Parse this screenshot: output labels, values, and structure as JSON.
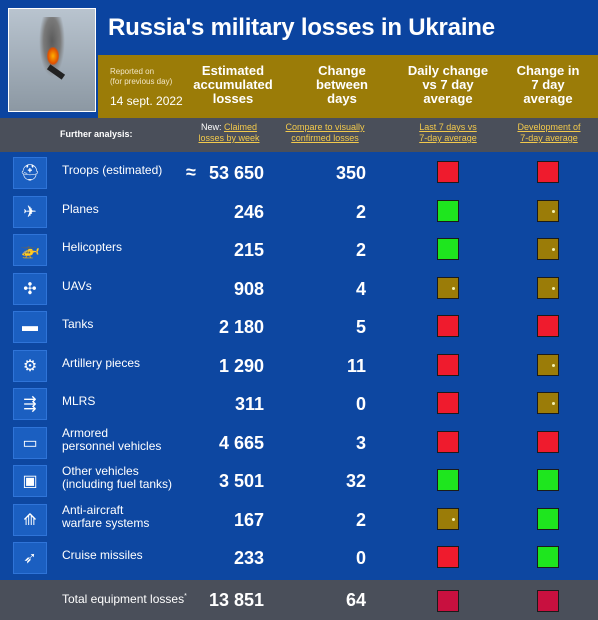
{
  "header": {
    "title": "Russia's military losses in Ukraine",
    "reported_line1": "Reported on",
    "reported_line2": "(for previous day)",
    "date": "14 sept. 2022",
    "columns": [
      {
        "line1": "Estimated",
        "line2": "accumulated",
        "line3": "losses"
      },
      {
        "line1": "Change",
        "line2": "between",
        "line3": "days"
      },
      {
        "line1": "Daily change",
        "line2": "vs 7 day",
        "line3": "average"
      },
      {
        "line1": "Change in",
        "line2": "7 day",
        "line3": "average"
      }
    ]
  },
  "analysis": {
    "label": "Further analysis:",
    "new_prefix": "New:",
    "link1_a": "Claimed",
    "link1_b": "losses by week",
    "link2_a": "Compare to visually",
    "link2_b": "confirmed losses",
    "link3_a": "Last 7 days vs",
    "link3_b": "7-day average",
    "link4_a": "Development of",
    "link4_b": "7-day average"
  },
  "rows": [
    {
      "icon": "soldier-helmet-icon",
      "label1": "Troops (estimated)",
      "label2": "",
      "prefix": "≈",
      "value": "53 650",
      "change": "350",
      "daily": "red",
      "avg": "red"
    },
    {
      "icon": "plane-icon",
      "label1": "Planes",
      "label2": "",
      "prefix": "",
      "value": "246",
      "change": "2",
      "daily": "green",
      "avg": "gold"
    },
    {
      "icon": "helicopter-icon",
      "label1": "Helicopters",
      "label2": "",
      "prefix": "",
      "value": "215",
      "change": "2",
      "daily": "green",
      "avg": "gold"
    },
    {
      "icon": "drone-icon",
      "label1": "UAVs",
      "label2": "",
      "prefix": "",
      "value": "908",
      "change": "4",
      "daily": "gold",
      "avg": "gold"
    },
    {
      "icon": "tank-icon",
      "label1": "Tanks",
      "label2": "",
      "prefix": "",
      "value": "2 180",
      "change": "5",
      "daily": "red",
      "avg": "red"
    },
    {
      "icon": "artillery-icon",
      "label1": "Artillery pieces",
      "label2": "",
      "prefix": "",
      "value": "1 290",
      "change": "11",
      "daily": "red",
      "avg": "gold"
    },
    {
      "icon": "mlrs-icon",
      "label1": "MLRS",
      "label2": "",
      "prefix": "",
      "value": "311",
      "change": "0",
      "daily": "red",
      "avg": "gold"
    },
    {
      "icon": "apc-icon",
      "label1": "Armored",
      "label2": "personnel vehicles",
      "prefix": "",
      "value": "4 665",
      "change": "3",
      "daily": "red",
      "avg": "red"
    },
    {
      "icon": "vehicle-icon",
      "label1": "Other vehicles",
      "label2": "(including fuel tanks)",
      "prefix": "",
      "value": "3 501",
      "change": "32",
      "daily": "green",
      "avg": "green"
    },
    {
      "icon": "anti-aircraft-icon",
      "label1": "Anti-aircraft",
      "label2": "warfare systems",
      "prefix": "",
      "value": "167",
      "change": "2",
      "daily": "gold",
      "avg": "green"
    },
    {
      "icon": "missile-icon",
      "label1": "Cruise missiles",
      "label2": "",
      "prefix": "",
      "value": "233",
      "change": "0",
      "daily": "red",
      "avg": "green"
    }
  ],
  "total": {
    "label": "Total equipment losses",
    "footnote_mark": "*",
    "value": "13 851",
    "change": "64",
    "daily": "red-t",
    "avg": "red-t"
  },
  "colors": {
    "red": "#ef1b2d",
    "green": "#1ee61e",
    "gold": "#9b7c08",
    "navy": "#0d47a1",
    "grey": "#4a4f5a"
  }
}
